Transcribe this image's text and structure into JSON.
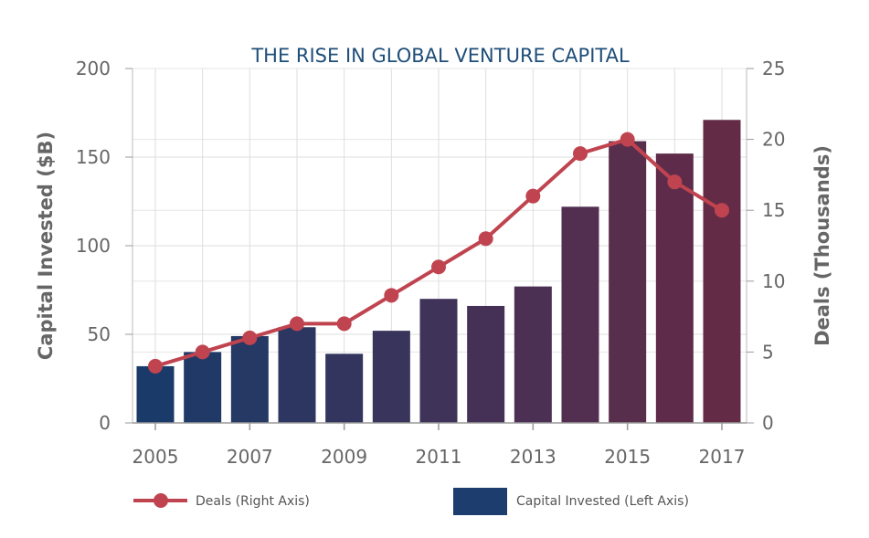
{
  "chart_data": {
    "type": "bar+line",
    "title": "THE RISE IN GLOBAL VENTURE CAPITAL",
    "x": [
      2005,
      2006,
      2007,
      2008,
      2009,
      2010,
      2011,
      2012,
      2013,
      2014,
      2015,
      2016,
      2017
    ],
    "x_tick_labels": [
      "2005",
      "2007",
      "2009",
      "2011",
      "2013",
      "2015",
      "2017"
    ],
    "series": [
      {
        "name": "Capital Invested (Left Axis)",
        "type": "bar",
        "axis": "left",
        "values": [
          32,
          40,
          49,
          54,
          39,
          52,
          70,
          66,
          77,
          122,
          159,
          152,
          171
        ]
      },
      {
        "name": "Deals (Right Axis)",
        "type": "line",
        "axis": "right",
        "values": [
          4,
          5,
          6,
          7,
          7,
          9,
          11,
          13,
          16,
          19,
          20,
          17,
          15
        ]
      }
    ],
    "ylabel_left": "Capital Invested ($B)",
    "ylim_left": [
      0,
      200
    ],
    "yticks_left": [
      "0",
      "50",
      "100",
      "150",
      "200"
    ],
    "ylabel_right": "Deals (Thousands)",
    "ylim_right": [
      0,
      25
    ],
    "yticks_right": [
      "0",
      "5",
      "10",
      "15",
      "20",
      "25"
    ],
    "grid": true,
    "legend_position": "bottom"
  },
  "colors": {
    "bar_start": "#1a3a6a",
    "bar_end": "#642b47",
    "line": "#c0444f",
    "legend_bar": "#1c3d6e",
    "title": "#1f4e79"
  }
}
